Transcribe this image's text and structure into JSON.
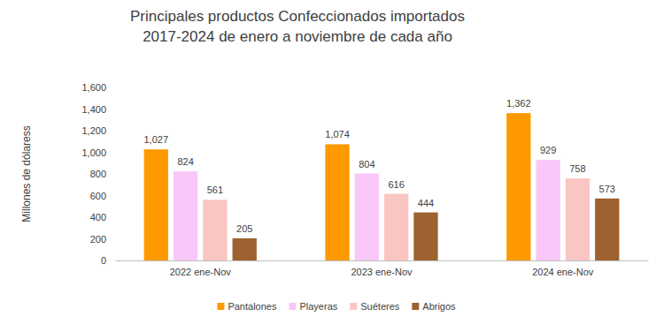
{
  "chart_data": {
    "type": "bar",
    "title": [
      "Principales productos Confeccionados importados",
      "2017-2024 de enero a noviembre de cada año"
    ],
    "y_label": "Millones de dólaress",
    "categories": [
      "2022 ene-Nov",
      "2023 ene-Nov",
      "2024 ene-Nov"
    ],
    "series": [
      {
        "name": "Pantalones",
        "color": "#ff9900",
        "values": [
          1027,
          1074,
          1362
        ],
        "value_labels": [
          "1,027",
          "1,074",
          "1,362"
        ]
      },
      {
        "name": "Playeras",
        "color": "#f9c8f9",
        "values": [
          824,
          804,
          929
        ],
        "value_labels": [
          "824",
          "804",
          "929"
        ]
      },
      {
        "name": "Suéteres",
        "color": "#f9c6c3",
        "values": [
          561,
          616,
          758
        ],
        "value_labels": [
          "561",
          "616",
          "758"
        ]
      },
      {
        "name": "Abrigos",
        "color": "#9c6230",
        "values": [
          205,
          444,
          573
        ],
        "value_labels": [
          "205",
          "444",
          "573"
        ]
      }
    ],
    "ylim": [
      0,
      1600
    ],
    "yticks": [
      0,
      200,
      400,
      600,
      800,
      {
        "value": 1000,
        "label": "1,000"
      },
      {
        "value": 1200,
        "label": "1,200"
      },
      {
        "value": 1400,
        "label": "1,400"
      },
      {
        "value": 1600,
        "label": "1,600"
      }
    ],
    "grid": false,
    "legend": "bottom",
    "data_labels": true
  }
}
